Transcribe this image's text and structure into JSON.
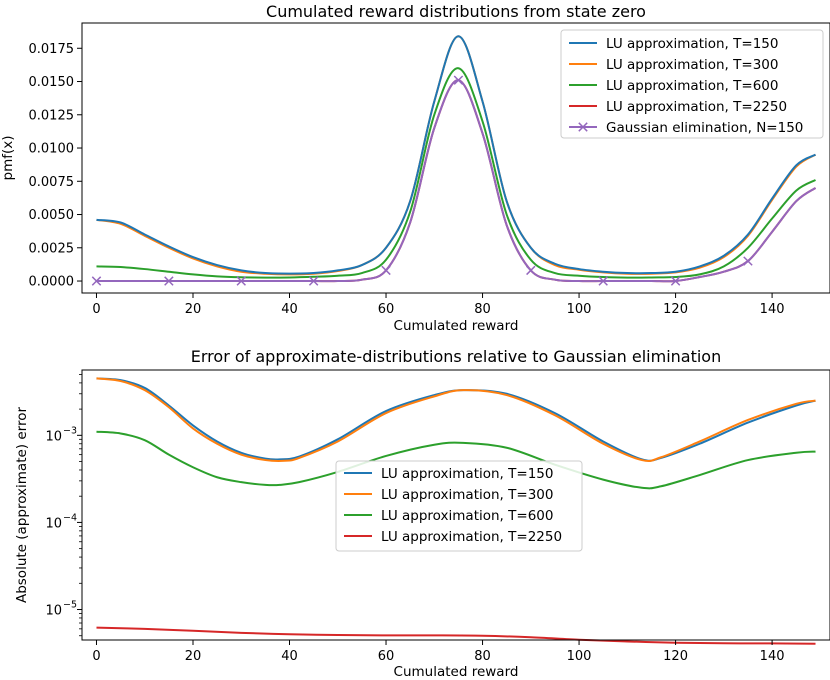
{
  "chart_data": [
    {
      "type": "line",
      "title": "Cumulated reward distributions from state zero",
      "xlabel": "Cumulated reward",
      "ylabel": "pmf(x)",
      "xlim": [
        -3,
        152
      ],
      "ylim": [
        -0.0009,
        0.0194
      ],
      "x_ticks": [
        {
          "v": 0,
          "label": "0"
        },
        {
          "v": 20,
          "label": "20"
        },
        {
          "v": 40,
          "label": "40"
        },
        {
          "v": 60,
          "label": "60"
        },
        {
          "v": 80,
          "label": "80"
        },
        {
          "v": 100,
          "label": "100"
        },
        {
          "v": 120,
          "label": "120"
        },
        {
          "v": 140,
          "label": "140"
        }
      ],
      "y_ticks": [
        {
          "v": 0.0,
          "label": "0.0000"
        },
        {
          "v": 0.0025,
          "label": "0.0025"
        },
        {
          "v": 0.005,
          "label": "0.0050"
        },
        {
          "v": 0.0075,
          "label": "0.0075"
        },
        {
          "v": 0.01,
          "label": "0.0100"
        },
        {
          "v": 0.0125,
          "label": "0.0125"
        },
        {
          "v": 0.015,
          "label": "0.0150"
        },
        {
          "v": 0.0175,
          "label": "0.0175"
        }
      ],
      "legend_position": "top-right",
      "series": [
        {
          "name": "LU approximation, T=150",
          "color": "#1f77b4",
          "x": [
            0,
            5,
            10,
            15,
            20,
            25,
            30,
            35,
            40,
            45,
            50,
            55,
            60,
            65,
            70,
            75,
            80,
            85,
            90,
            95,
            100,
            105,
            110,
            115,
            120,
            125,
            130,
            135,
            140,
            145,
            149
          ],
          "y": [
            0.0046,
            0.0044,
            0.0035,
            0.0026,
            0.0018,
            0.0012,
            0.0008,
            0.0006,
            0.00056,
            0.0006,
            0.0008,
            0.0012,
            0.0025,
            0.006,
            0.0135,
            0.0184,
            0.0135,
            0.006,
            0.0025,
            0.0013,
            0.0009,
            0.0007,
            0.0006,
            0.0006,
            0.0007,
            0.0011,
            0.0019,
            0.0035,
            0.0062,
            0.0087,
            0.0095
          ]
        },
        {
          "name": "LU approximation, T=300",
          "color": "#ff7f0e",
          "x": [
            0,
            5,
            10,
            15,
            20,
            25,
            30,
            35,
            40,
            45,
            50,
            55,
            60,
            65,
            70,
            75,
            80,
            85,
            90,
            95,
            100,
            105,
            110,
            115,
            120,
            125,
            130,
            135,
            140,
            145,
            149
          ],
          "y": [
            0.0046,
            0.0043,
            0.0034,
            0.0025,
            0.0017,
            0.0011,
            0.0007,
            0.00055,
            0.0005,
            0.00055,
            0.00075,
            0.0012,
            0.0025,
            0.006,
            0.0135,
            0.0184,
            0.0135,
            0.006,
            0.0025,
            0.0012,
            0.00085,
            0.00065,
            0.00055,
            0.00055,
            0.00065,
            0.001,
            0.0018,
            0.0034,
            0.0061,
            0.0086,
            0.0095
          ]
        },
        {
          "name": "LU approximation, T=600",
          "color": "#2ca02c",
          "x": [
            0,
            5,
            10,
            15,
            20,
            25,
            30,
            35,
            40,
            45,
            50,
            55,
            60,
            65,
            70,
            75,
            80,
            85,
            90,
            95,
            100,
            105,
            110,
            115,
            120,
            125,
            130,
            135,
            140,
            145,
            149
          ],
          "y": [
            0.0011,
            0.00105,
            0.0009,
            0.0007,
            0.0005,
            0.00035,
            0.00028,
            0.00026,
            0.00027,
            0.00032,
            0.0004,
            0.0006,
            0.0016,
            0.0052,
            0.0125,
            0.016,
            0.012,
            0.005,
            0.0016,
            0.0006,
            0.0004,
            0.0003,
            0.00026,
            0.00027,
            0.0003,
            0.0005,
            0.0011,
            0.0025,
            0.0047,
            0.0068,
            0.0076
          ]
        },
        {
          "name": "LU approximation, T=2250",
          "color": "#d62728",
          "x": [
            0,
            5,
            10,
            15,
            20,
            25,
            30,
            35,
            40,
            45,
            50,
            55,
            60,
            65,
            70,
            75,
            80,
            85,
            90,
            95,
            100,
            105,
            110,
            115,
            120,
            125,
            130,
            135,
            140,
            145,
            149
          ],
          "y": [
            0.0,
            0.0,
            0.0,
            0.0,
            0.0,
            0.0,
            0.0,
            0.0,
            0.0,
            0.0,
            0.0,
            0.0001,
            0.0008,
            0.0044,
            0.0115,
            0.0151,
            0.0111,
            0.0042,
            0.0008,
            0.0001,
            0.0,
            0.0,
            0.0,
            0.0,
            0.0,
            0.0003,
            0.0007,
            0.0015,
            0.0037,
            0.006,
            0.007
          ]
        },
        {
          "name": "Gaussian elimination, N=150",
          "color": "#9467bd",
          "marker": "x",
          "x": [
            0,
            5,
            10,
            15,
            20,
            25,
            30,
            35,
            40,
            45,
            50,
            55,
            60,
            65,
            70,
            75,
            80,
            85,
            90,
            95,
            100,
            105,
            110,
            115,
            120,
            125,
            130,
            135,
            140,
            145,
            149
          ],
          "y": [
            0.0,
            0.0,
            0.0,
            0.0,
            0.0,
            0.0,
            0.0,
            0.0,
            0.0,
            0.0,
            0.0,
            0.0001,
            0.0008,
            0.0044,
            0.0115,
            0.0151,
            0.0111,
            0.0042,
            0.0008,
            0.0001,
            0.0,
            0.0,
            0.0,
            0.0,
            0.0,
            0.0003,
            0.0007,
            0.0015,
            0.0037,
            0.006,
            0.007
          ],
          "marker_x": [
            0,
            15,
            30,
            45,
            60,
            75,
            90,
            105,
            120,
            135
          ],
          "marker_y": [
            0.0,
            0.0,
            0.0,
            0.0,
            0.0008,
            0.0151,
            0.0008,
            0.0,
            0.0,
            0.0015
          ]
        }
      ]
    },
    {
      "type": "line",
      "scale": "log",
      "title": "Error of approximate-distributions relative to Gaussian elimination",
      "xlabel": "Cumulated reward",
      "ylabel": "Absolute (approximate) error",
      "xlim": [
        -3,
        152
      ],
      "ylim_log10": [
        -5.35,
        -2.25
      ],
      "x_ticks": [
        {
          "v": 0,
          "label": "0"
        },
        {
          "v": 20,
          "label": "20"
        },
        {
          "v": 40,
          "label": "40"
        },
        {
          "v": 60,
          "label": "60"
        },
        {
          "v": 80,
          "label": "80"
        },
        {
          "v": 100,
          "label": "100"
        },
        {
          "v": 120,
          "label": "120"
        },
        {
          "v": 140,
          "label": "140"
        }
      ],
      "y_ticks": [
        {
          "exp": -5,
          "base": "10",
          "sup": "−5"
        },
        {
          "exp": -4,
          "base": "10",
          "sup": "−4"
        },
        {
          "exp": -3,
          "base": "10",
          "sup": "−3"
        }
      ],
      "legend_position": "center",
      "series": [
        {
          "name": "LU approximation, T=150",
          "color": "#1f77b4",
          "x": [
            0,
            5,
            10,
            15,
            20,
            25,
            30,
            35,
            38,
            42,
            50,
            60,
            70,
            76,
            85,
            95,
            105,
            113,
            117,
            125,
            135,
            145,
            149
          ],
          "y": [
            0.0045,
            0.0043,
            0.0035,
            0.0022,
            0.0013,
            0.00085,
            0.00063,
            0.00054,
            0.00053,
            0.00057,
            0.0009,
            0.0019,
            0.0029,
            0.0033,
            0.003,
            0.0018,
            0.00085,
            0.00053,
            0.00055,
            0.0008,
            0.0014,
            0.0022,
            0.0025
          ]
        },
        {
          "name": "LU approximation, T=300",
          "color": "#ff7f0e",
          "x": [
            0,
            5,
            10,
            15,
            20,
            25,
            30,
            35,
            39,
            42,
            50,
            60,
            70,
            76,
            85,
            95,
            105,
            113,
            117,
            125,
            135,
            145,
            149
          ],
          "y": [
            0.0045,
            0.0042,
            0.0033,
            0.0021,
            0.0012,
            0.0008,
            0.0006,
            0.00052,
            0.00051,
            0.00055,
            0.00085,
            0.0018,
            0.0028,
            0.0033,
            0.0029,
            0.0017,
            0.0008,
            0.00052,
            0.00056,
            0.00085,
            0.0015,
            0.0023,
            0.0025
          ]
        },
        {
          "name": "LU approximation, T=600",
          "color": "#2ca02c",
          "x": [
            0,
            5,
            10,
            15,
            20,
            25,
            30,
            35,
            38,
            42,
            50,
            60,
            70,
            76,
            85,
            95,
            105,
            113,
            117,
            125,
            135,
            145,
            149
          ],
          "y": [
            0.0011,
            0.00105,
            0.00088,
            0.0006,
            0.00043,
            0.00033,
            0.00029,
            0.00027,
            0.00027,
            0.00029,
            0.00038,
            0.00058,
            0.00078,
            0.00082,
            0.00072,
            0.00046,
            0.00031,
            0.00025,
            0.00026,
            0.00035,
            0.00052,
            0.00063,
            0.00065
          ]
        },
        {
          "name": "LU approximation, T=2250",
          "color": "#d62728",
          "x": [
            0,
            10,
            20,
            30,
            40,
            50,
            60,
            70,
            80,
            90,
            100,
            110,
            120,
            130,
            140,
            149
          ],
          "y": [
            6.2e-06,
            6e-06,
            5.7e-06,
            5.4e-06,
            5.2e-06,
            5.1e-06,
            5.05e-06,
            5.05e-06,
            5e-06,
            4.8e-06,
            4.5e-06,
            4.3e-06,
            4.15e-06,
            4.1e-06,
            4.08e-06,
            4.05e-06
          ]
        }
      ]
    }
  ]
}
